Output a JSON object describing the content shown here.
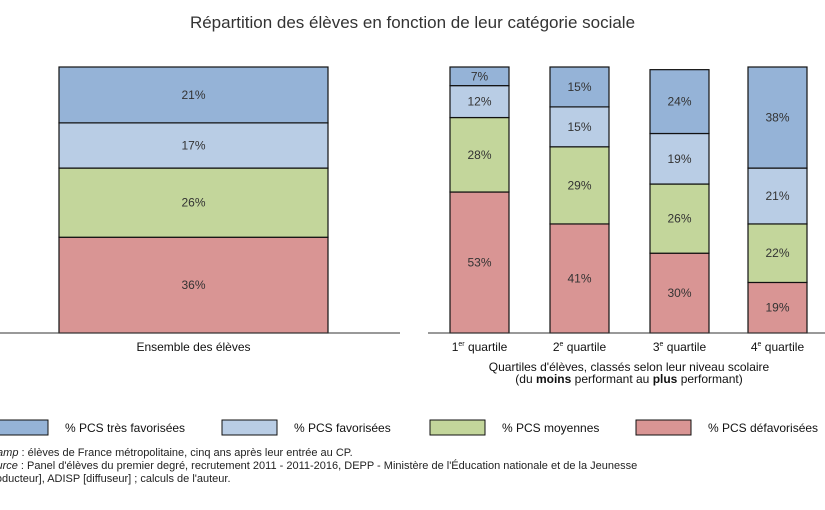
{
  "title": "Répartition des élèves en fonction de leur catégorie sociale",
  "chart_data": [
    {
      "type": "bar",
      "stacked": true,
      "title": "",
      "categories": [
        "Ensemble des élèves"
      ],
      "series": [
        {
          "name": "% PCS défavorisées",
          "color": "#d99594",
          "values": [
            36
          ]
        },
        {
          "name": "% PCS moyennes",
          "color": "#c3d69b",
          "values": [
            26
          ]
        },
        {
          "name": "% PCS favorisées",
          "color": "#b9cde5",
          "values": [
            17
          ]
        },
        {
          "name": "% PCS très favorisées",
          "color": "#95b3d7",
          "values": [
            21
          ]
        }
      ]
    },
    {
      "type": "bar",
      "stacked": true,
      "title": "",
      "categories": [
        {
          "num": "1",
          "sup": "er",
          "label": "quartile"
        },
        {
          "num": "2",
          "sup": "e",
          "label": "quartile"
        },
        {
          "num": "3",
          "sup": "e",
          "label": "quartile"
        },
        {
          "num": "4",
          "sup": "e",
          "label": "quartile"
        }
      ],
      "series": [
        {
          "name": "% PCS défavorisées",
          "color": "#d99594",
          "values": [
            53,
            41,
            30,
            19
          ]
        },
        {
          "name": "% PCS moyennes",
          "color": "#c3d69b",
          "values": [
            28,
            29,
            26,
            22
          ]
        },
        {
          "name": "% PCS favorisées",
          "color": "#b9cde5",
          "values": [
            12,
            15,
            19,
            21
          ]
        },
        {
          "name": "% PCS très favorisées",
          "color": "#95b3d7",
          "values": [
            7,
            15,
            24,
            38
          ]
        }
      ],
      "xlabel_lines": [
        [
          {
            "t": "Quartiles d'élèves, classés selon leur niveau scolaire",
            "b": false
          }
        ],
        [
          {
            "t": "(du ",
            "b": false
          },
          {
            "t": "moins",
            "b": true
          },
          {
            "t": " performant au ",
            "b": false
          },
          {
            "t": "plus",
            "b": true
          },
          {
            "t": " performant)",
            "b": false
          }
        ]
      ]
    }
  ],
  "legend": [
    {
      "label": "% PCS très favorisées",
      "color": "#95b3d7"
    },
    {
      "label": "% PCS favorisées",
      "color": "#b9cde5"
    },
    {
      "label": "% PCS moyennes",
      "color": "#c3d69b"
    },
    {
      "label": "% PCS défavorisées",
      "color": "#d99594"
    }
  ],
  "notes": {
    "champ_label": "Champ",
    "champ_text": " : élèves de France métropolitaine, cinq ans après leur entrée au CP.",
    "source_label": "Source",
    "source_text": " : Panel d'élèves du premier degré, recrutement 2011 - 2011-2016, DEPP - Ministère de l'Éducation nationale et de la Jeunesse",
    "source_text2": "[producteur], ADISP [diffuseur] ; calculs de l'auteur."
  }
}
